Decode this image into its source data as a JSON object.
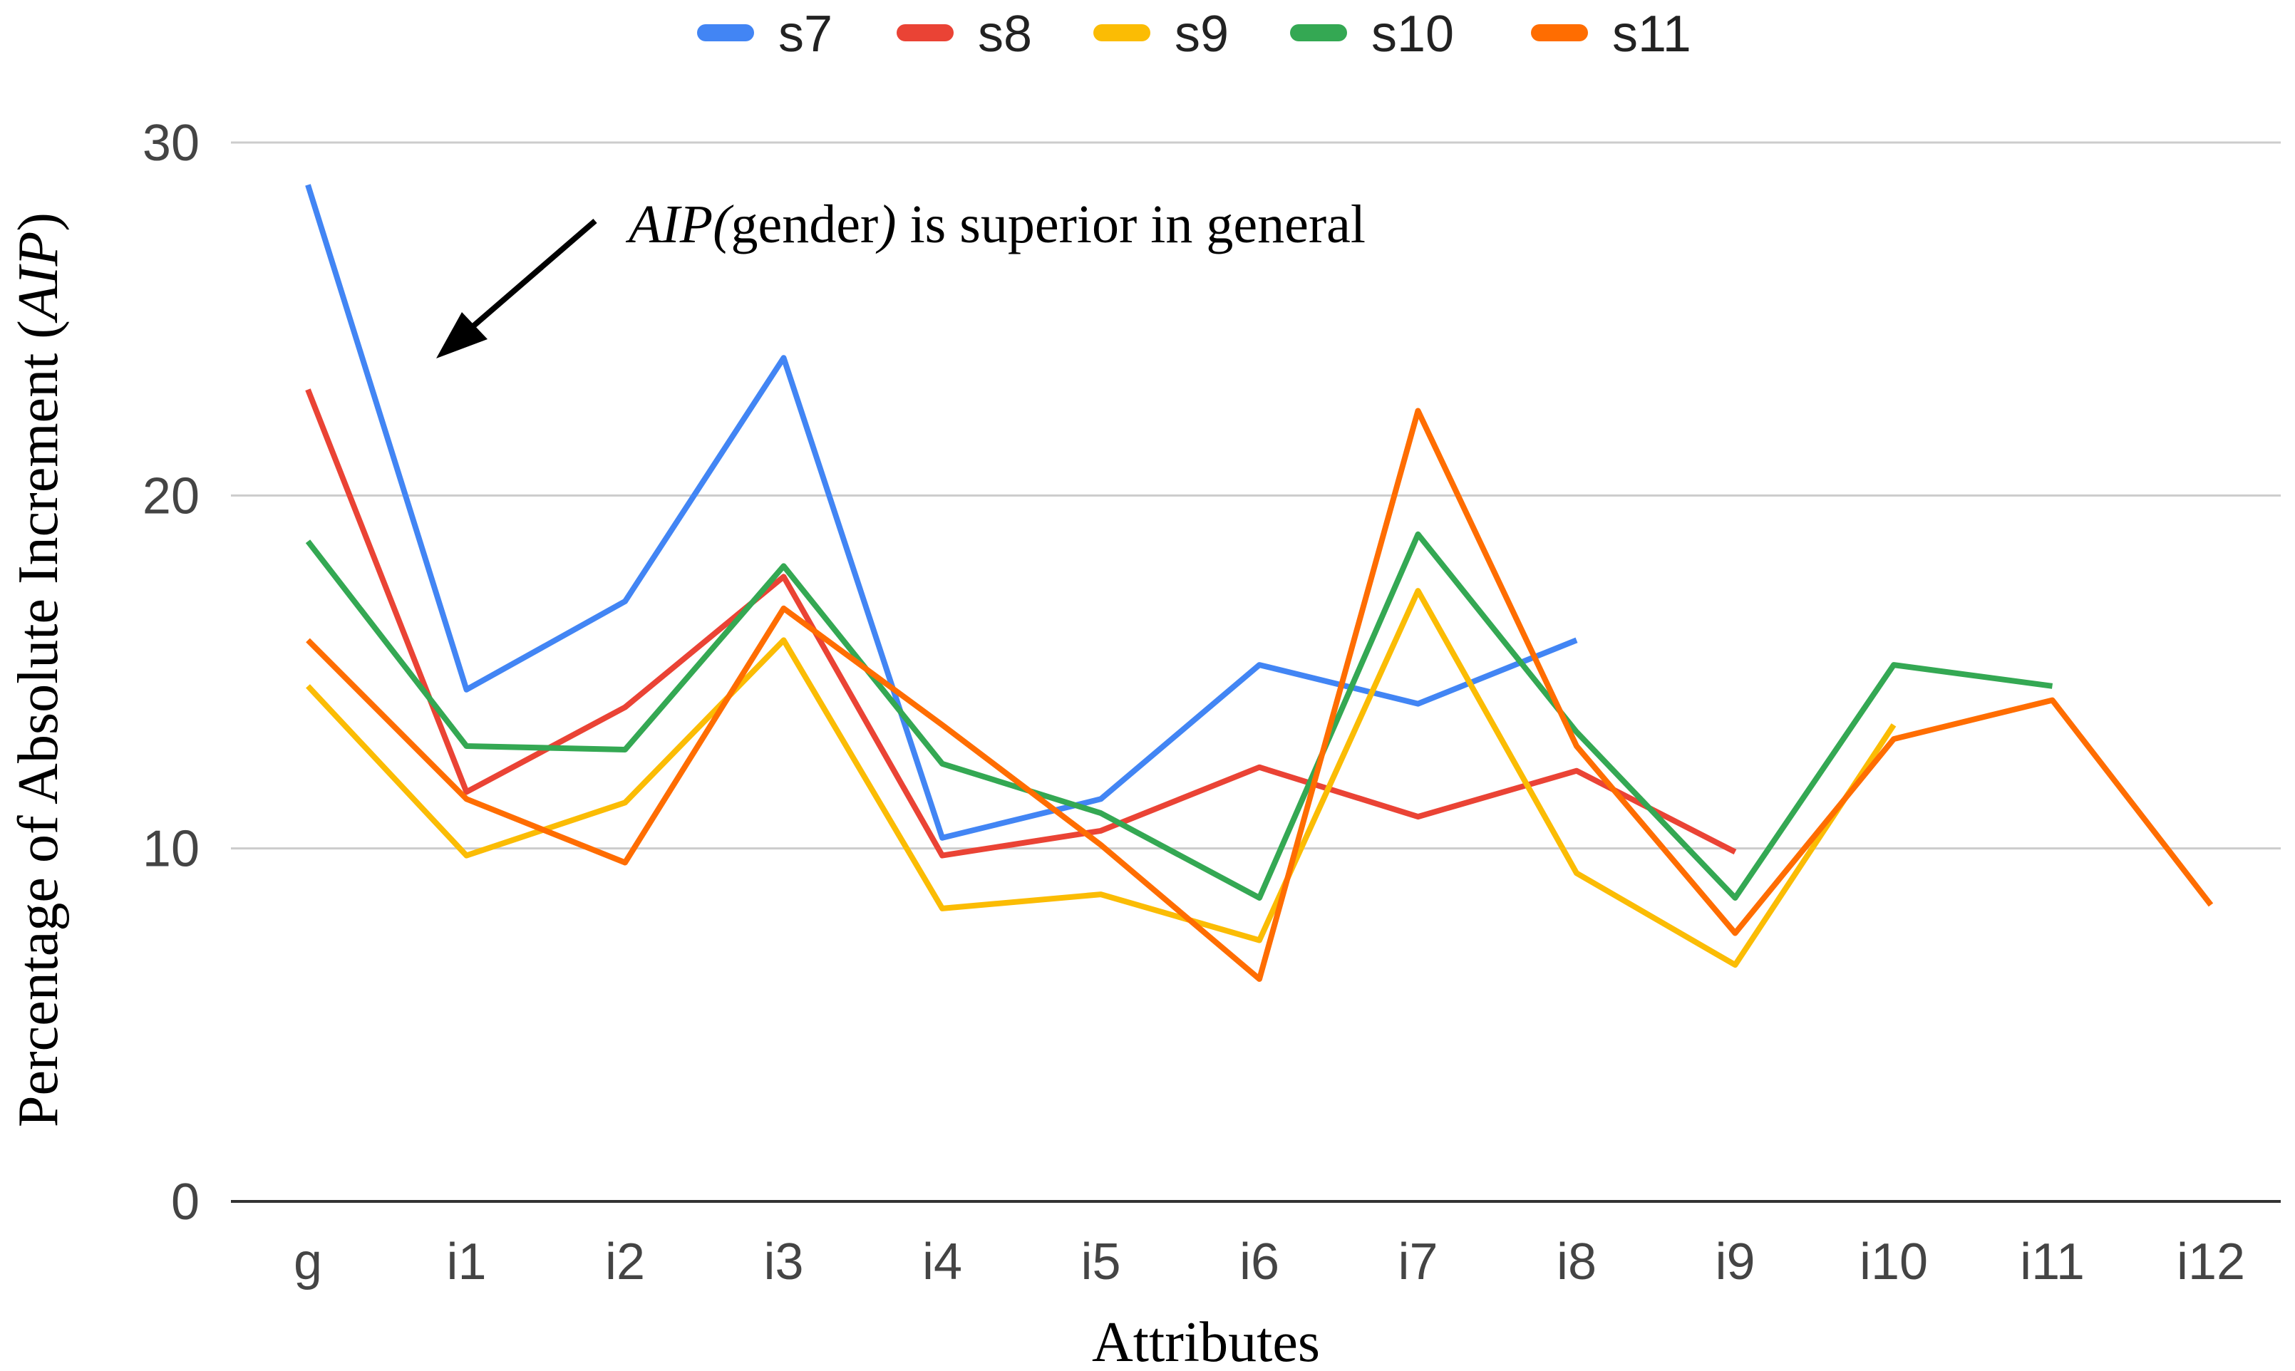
{
  "chart_data": {
    "type": "line",
    "title": "",
    "xlabel": "Attributes",
    "ylabel_prefix": "Percentage of Absolute Increment (",
    "ylabel_italic": "AIP",
    "ylabel_suffix": ")",
    "ylim": [
      0,
      30
    ],
    "yticks": [
      "0",
      "10",
      "20",
      "30"
    ],
    "grid": true,
    "legend_position": "top",
    "categories": [
      "g",
      "i1",
      "i2",
      "i3",
      "i4",
      "i5",
      "i6",
      "i7",
      "i8",
      "i9",
      "i10",
      "i11",
      "i12"
    ],
    "series": [
      {
        "name": "s7",
        "color": "#4285F4",
        "values": [
          28.8,
          14.5,
          17.0,
          23.9,
          10.3,
          11.4,
          15.2,
          14.1,
          15.9,
          null,
          null,
          null,
          null
        ]
      },
      {
        "name": "s8",
        "color": "#EA4335",
        "values": [
          23.0,
          11.6,
          14.0,
          17.7,
          9.8,
          10.5,
          12.3,
          10.9,
          12.2,
          9.9,
          null,
          null,
          null
        ]
      },
      {
        "name": "s9",
        "color": "#FBBC04",
        "values": [
          14.6,
          9.8,
          11.3,
          15.9,
          8.3,
          8.7,
          7.4,
          17.3,
          9.3,
          6.7,
          13.5,
          null,
          null
        ]
      },
      {
        "name": "s10",
        "color": "#34A853",
        "values": [
          18.7,
          12.9,
          12.8,
          18.0,
          12.4,
          11.0,
          8.6,
          18.9,
          13.3,
          8.6,
          15.2,
          14.6,
          null
        ]
      },
      {
        "name": "s11",
        "color": "#FF6D01",
        "values": [
          15.9,
          11.4,
          9.6,
          16.8,
          13.5,
          10.1,
          6.3,
          22.4,
          12.9,
          7.6,
          13.1,
          14.2,
          8.4
        ]
      }
    ],
    "annotation": {
      "text_italic_1": "AIP(",
      "text_plain": "gender",
      "text_italic_2": ")",
      "text_rest": " is superior in general",
      "points_to_category": "g"
    }
  }
}
